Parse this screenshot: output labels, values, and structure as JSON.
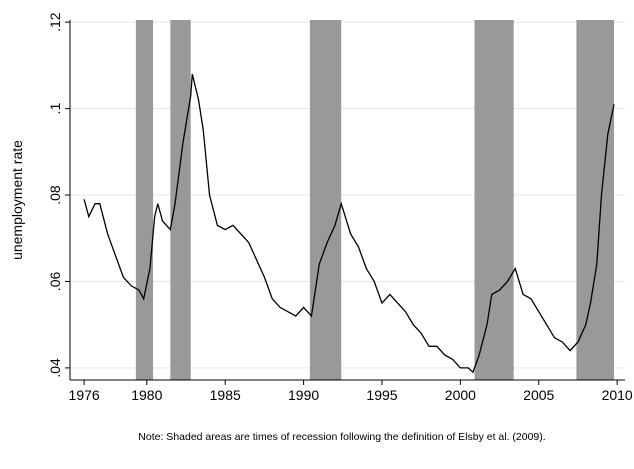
{
  "chart_data": {
    "type": "line",
    "y_label": "unemployment rate",
    "note": "Note: Shaded areas are times of recession following the definition of Elsby et al. (2009).",
    "xlim": [
      1975.1,
      2010.5
    ],
    "ylim": [
      0.0372,
      0.1205
    ],
    "xticks": [
      1976,
      1980,
      1985,
      1990,
      1995,
      2000,
      2005,
      2010
    ],
    "yticks": [
      {
        "value": 0.04,
        "label": ".04"
      },
      {
        "value": 0.06,
        "label": ".06"
      },
      {
        "value": 0.08,
        "label": ".08"
      },
      {
        "value": 0.1,
        "label": ".1"
      },
      {
        "value": 0.12,
        "label": ".12"
      }
    ],
    "grid": true,
    "recession_color": "#999999",
    "recessions": [
      [
        1979.3,
        1980.4
      ],
      [
        1981.5,
        1982.8
      ],
      [
        1990.4,
        1992.4
      ],
      [
        2000.9,
        2003.4
      ],
      [
        2007.4,
        2009.8
      ]
    ],
    "color": "#000000",
    "x": [
      1976,
      1976.3,
      1976.7,
      1977,
      1977.5,
      1978,
      1978.5,
      1979,
      1979.5,
      1979.8,
      1980.2,
      1980.5,
      1980.7,
      1981,
      1981.5,
      1981.8,
      1982.3,
      1982.8,
      1982.9,
      1983.3,
      1983.6,
      1984,
      1984.5,
      1985,
      1985.5,
      1986,
      1986.5,
      1987,
      1987.5,
      1988,
      1988.5,
      1989,
      1989.5,
      1990,
      1990.5,
      1991,
      1991.5,
      1992,
      1992.4,
      1993,
      1993.5,
      1994,
      1994.5,
      1995,
      1995.5,
      1996,
      1996.5,
      1997,
      1997.5,
      1998,
      1998.5,
      1999,
      1999.5,
      2000,
      2000.5,
      2000.8,
      2001.2,
      2001.7,
      2002,
      2002.5,
      2003,
      2003.5,
      2004,
      2004.5,
      2005,
      2005.5,
      2006,
      2006.5,
      2007,
      2007.5,
      2008,
      2008.3,
      2008.7,
      2009,
      2009.4,
      2009.8
    ],
    "values": [
      0.079,
      0.075,
      0.078,
      0.078,
      0.071,
      0.066,
      0.061,
      0.059,
      0.058,
      0.056,
      0.063,
      0.075,
      0.078,
      0.074,
      0.072,
      0.078,
      0.092,
      0.103,
      0.108,
      0.102,
      0.095,
      0.08,
      0.073,
      0.072,
      0.073,
      0.071,
      0.069,
      0.065,
      0.061,
      0.056,
      0.054,
      0.053,
      0.052,
      0.054,
      0.052,
      0.064,
      0.069,
      0.073,
      0.078,
      0.071,
      0.068,
      0.063,
      0.06,
      0.055,
      0.057,
      0.055,
      0.053,
      0.05,
      0.048,
      0.045,
      0.045,
      0.043,
      0.042,
      0.04,
      0.04,
      0.039,
      0.043,
      0.05,
      0.057,
      0.058,
      0.06,
      0.063,
      0.057,
      0.056,
      0.053,
      0.05,
      0.047,
      0.046,
      0.044,
      0.046,
      0.05,
      0.055,
      0.064,
      0.08,
      0.094,
      0.101
    ]
  }
}
